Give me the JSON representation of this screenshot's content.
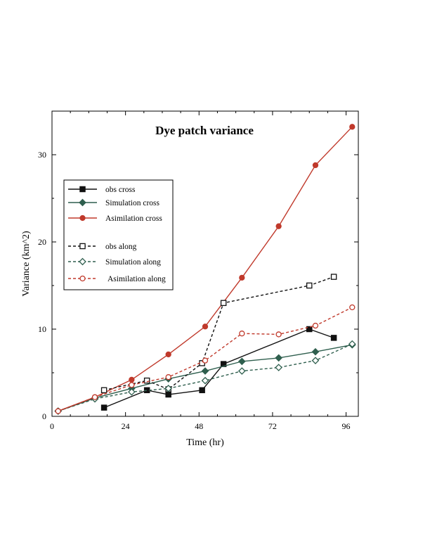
{
  "chart_data": {
    "type": "line",
    "title": "Dye patch variance",
    "xlabel": "Time (hr)",
    "ylabel": "Variance (km^2)",
    "xlim": [
      0,
      100
    ],
    "ylim": [
      0,
      35
    ],
    "x_ticks": [
      0,
      24,
      48,
      72,
      96
    ],
    "y_ticks": [
      0,
      10,
      20,
      30
    ],
    "grid": false,
    "legend_position": "upper-left",
    "series": [
      {
        "name": "obs cross",
        "color": "#111111",
        "dash": "solid",
        "marker": "square",
        "filled": true,
        "x": [
          17,
          31,
          38,
          49,
          56,
          84,
          92
        ],
        "y": [
          1.0,
          3.0,
          2.5,
          3.0,
          6.0,
          10.0,
          9.0
        ]
      },
      {
        "name": "Simulation cross",
        "color": "#2f5f4e",
        "dash": "solid",
        "marker": "diamond",
        "filled": true,
        "x": [
          2,
          14,
          26,
          38,
          50,
          62,
          74,
          86,
          98
        ],
        "y": [
          0.6,
          2.1,
          3.2,
          4.3,
          5.2,
          6.3,
          6.7,
          7.4,
          8.2
        ]
      },
      {
        "name": "Asimilation cross",
        "color": "#c0392b",
        "dash": "solid",
        "marker": "circle",
        "filled": true,
        "x": [
          2,
          14,
          26,
          38,
          50,
          62,
          74,
          86,
          98
        ],
        "y": [
          0.6,
          2.2,
          4.2,
          7.1,
          10.3,
          15.9,
          21.8,
          28.8,
          33.2
        ]
      },
      {
        "name": "obs along",
        "color": "#111111",
        "dash": "dashed",
        "marker": "square",
        "filled": false,
        "x": [
          17,
          31,
          38,
          49,
          56,
          84,
          92
        ],
        "y": [
          3.0,
          4.1,
          3.1,
          6.1,
          13.0,
          15.0,
          16.0
        ]
      },
      {
        "name": "Simulation along",
        "color": "#2f5f4e",
        "dash": "dashed",
        "marker": "diamond",
        "filled": false,
        "x": [
          2,
          14,
          26,
          38,
          50,
          62,
          74,
          86,
          98
        ],
        "y": [
          0.6,
          2.0,
          2.8,
          3.2,
          4.1,
          5.2,
          5.6,
          6.4,
          8.3
        ]
      },
      {
        "name": "Asimilation along",
        "color": "#c0392b",
        "dash": "dashed",
        "marker": "circle",
        "filled": false,
        "x": [
          2,
          14,
          26,
          38,
          50,
          62,
          74,
          86,
          98
        ],
        "y": [
          0.6,
          2.2,
          3.6,
          4.5,
          6.4,
          9.5,
          9.4,
          10.4,
          12.5
        ]
      }
    ]
  }
}
